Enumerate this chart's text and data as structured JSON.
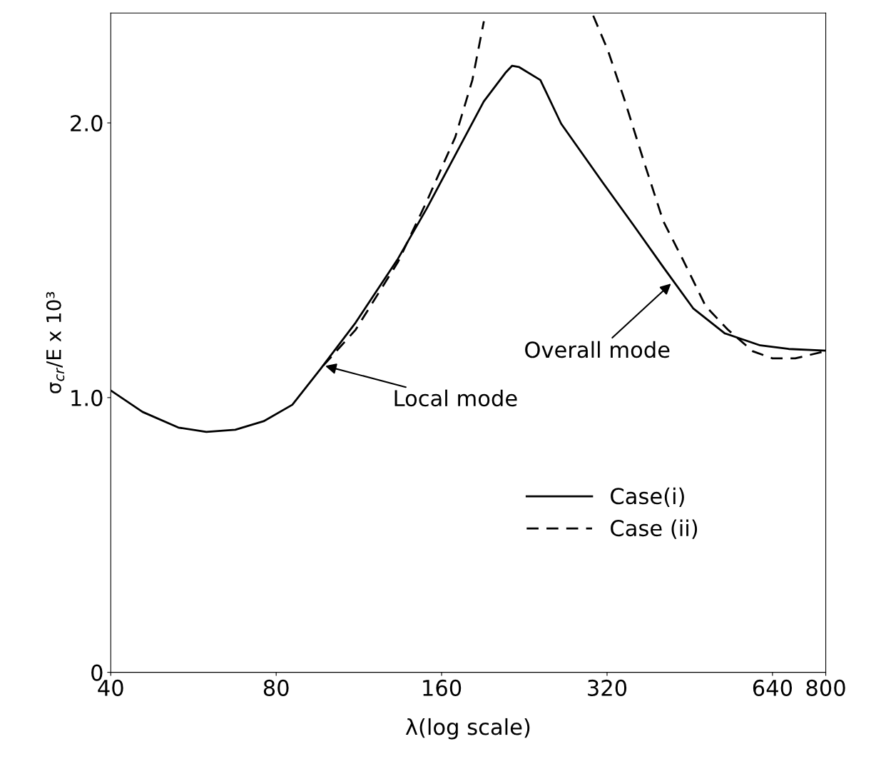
{
  "chart_data": {
    "type": "line",
    "xlabel": "λ(log scale)",
    "ylabel": "σ$_{cr}$/E x 10³",
    "log": "x",
    "xlim": [
      40,
      800
    ],
    "xticks": [
      40,
      80,
      160,
      320,
      640,
      800
    ],
    "ylim": [
      0,
      2.4
    ],
    "yticks": [
      {
        "value": 0,
        "label": "0"
      },
      {
        "value": 1.0,
        "label": "1.0"
      },
      {
        "value": 2.0,
        "label": "2.0"
      }
    ],
    "grid": false,
    "legend": "lower right",
    "marker": "none",
    "series": [
      {
        "name": "Case(i)",
        "color": "#000000",
        "line_style": "solid",
        "x": [
          40,
          45.7,
          53.1,
          59.7,
          67.4,
          75.9,
          85.6,
          96.3,
          111.6,
          133.3,
          150.3,
          169.4,
          190.9,
          209,
          215,
          221.4,
          242,
          264,
          314,
          358,
          405,
          459,
          524,
          608,
          685,
          800
        ],
        "values": [
          1.026,
          0.948,
          0.891,
          0.875,
          0.883,
          0.914,
          0.974,
          1.104,
          1.273,
          1.506,
          1.688,
          1.883,
          2.078,
          2.182,
          2.208,
          2.203,
          2.156,
          1.997,
          1.784,
          1.626,
          1.475,
          1.325,
          1.234,
          1.19,
          1.177,
          1.171
        ]
      },
      {
        "name": "Case (ii)",
        "color": "#000000",
        "line_style": "dashed",
        "x": [
          97.5,
          111.6,
          133.3,
          150.3,
          169.4,
          182,
          191,
          null,
          302,
          321,
          344,
          374,
          405,
          440,
          484,
          531,
          589,
          640,
          704,
          800
        ],
        "values": [
          1.117,
          1.247,
          1.494,
          1.714,
          1.948,
          2.156,
          2.37,
          null,
          2.39,
          2.265,
          2.086,
          1.855,
          1.642,
          1.501,
          1.332,
          1.247,
          1.169,
          1.143,
          1.143,
          1.169
        ]
      }
    ],
    "annotations": [
      {
        "text": "Local mode",
        "x": 97.5,
        "y": 1.117
      },
      {
        "text": "Overall mode",
        "x": 421,
        "y": 1.42
      }
    ]
  }
}
